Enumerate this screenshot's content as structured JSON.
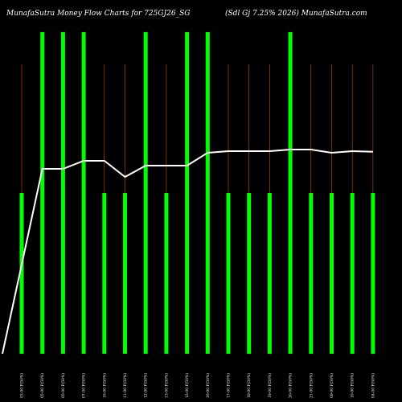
{
  "chart_data": {
    "type": "bar",
    "title_left": "MunafaSutra  Money Flow  Charts for 725GJ26_SG",
    "title_right": "(Sdl Gj 7.25% 2026) MunafaSutra.com",
    "categories": [
      "03-00 F(50%)",
      "05-00 F(50%)",
      "05-00 F(50%)",
      "07-00 F(50%)",
      "10-00 F(50%)",
      "11-00 F(50%)",
      "12-00 F(50%)",
      "13-00 F(50%)",
      "15-00 F(50%)",
      "16-00 F(50%)",
      "17-00 F(50%)",
      "18-00 F(50%)",
      "19-00 F(50%)",
      "20-00 F(50%)",
      "21-00 F(50%)",
      "09-00 F(50%)",
      "10-00 F(50%)",
      "04-00 F(50%)"
    ],
    "bar_heights": [
      0.5,
      1.0,
      1.0,
      1.0,
      0.5,
      0.5,
      1.0,
      0.5,
      1.0,
      1.0,
      0.5,
      0.5,
      0.5,
      1.0,
      0.5,
      0.5,
      0.5,
      0.5
    ],
    "line_values": [
      0.0,
      0.575,
      0.575,
      0.6,
      0.6,
      0.55,
      0.585,
      0.585,
      0.585,
      0.625,
      0.63,
      0.63,
      0.63,
      0.635,
      0.635,
      0.625,
      0.63,
      0.628
    ],
    "ylim": [
      0,
      1
    ],
    "colors": {
      "bar": "#00ff00",
      "line": "#ffffff",
      "grid": "#cc5500",
      "background": "#000000"
    }
  }
}
